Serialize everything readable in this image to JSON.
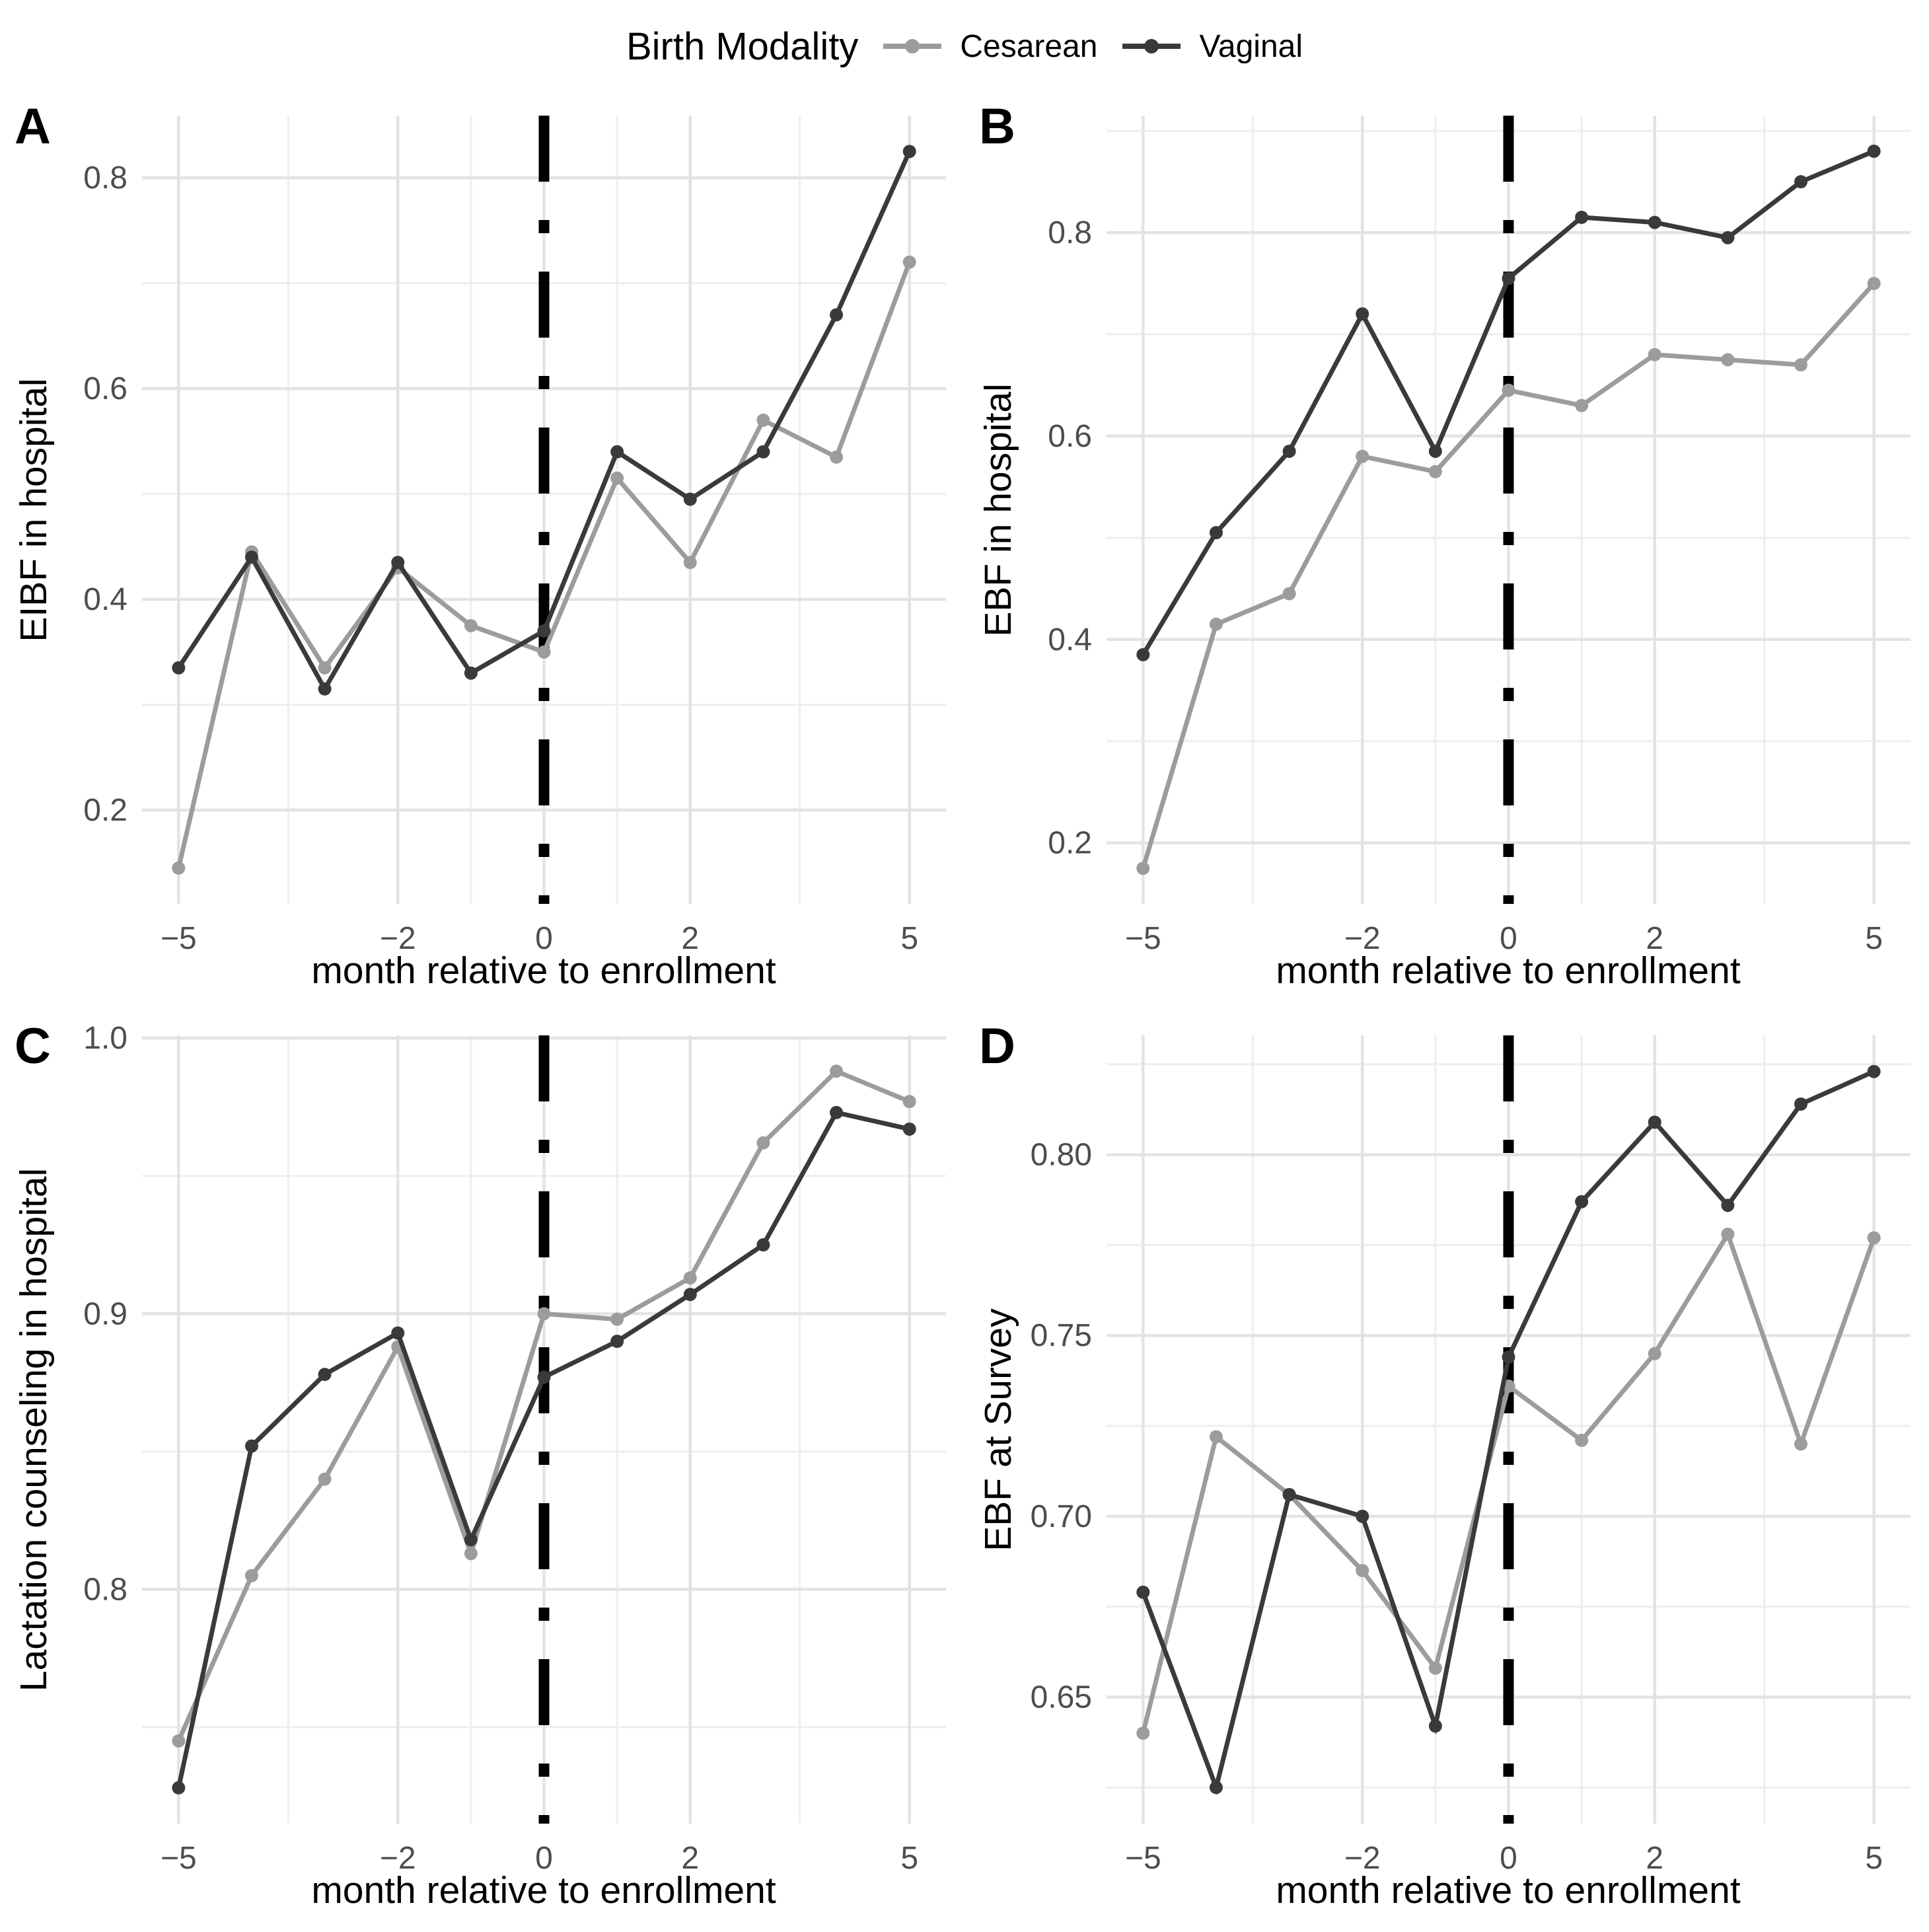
{
  "chart_data": {
    "type": "line",
    "xlabel": "month relative to enrollment",
    "x": [
      -5,
      -4,
      -3,
      -2,
      -1,
      0,
      1,
      2,
      3,
      4,
      5
    ],
    "xlim": [
      -5.5,
      5.5
    ],
    "x_breaks": [
      -5,
      -2,
      0,
      2,
      5
    ],
    "x_tick_labels": [
      "−5",
      "−2",
      "0",
      "2",
      "5"
    ],
    "x_minor_breaks": [
      -3.5,
      -1,
      1,
      3.5
    ],
    "grid": "on",
    "legend": {
      "title": "Birth Modality",
      "position": "top",
      "series": [
        {
          "name": "Cesarean",
          "color": "#9c9c9c"
        },
        {
          "name": "Vaginal",
          "color": "#3a3a3a"
        }
      ]
    },
    "vline": {
      "x": 0,
      "style": "dot-dash",
      "color": "#000000"
    },
    "panels": [
      {
        "label": "A",
        "ylabel": "EIBF in hospital",
        "ylim": [
          0.111,
          0.859
        ],
        "y_breaks": [
          0.2,
          0.4,
          0.6,
          0.8
        ],
        "y_tick_labels": [
          "0.2",
          "0.4",
          "0.6",
          "0.8"
        ],
        "y_minor_breaks": [
          0.3,
          0.5,
          0.7
        ],
        "series": [
          {
            "name": "Cesarean",
            "values": [
              0.145,
              0.445,
              0.335,
              0.43,
              0.375,
              0.35,
              0.515,
              0.435,
              0.57,
              0.535,
              0.72
            ]
          },
          {
            "name": "Vaginal",
            "values": [
              0.335,
              0.44,
              0.315,
              0.435,
              0.33,
              0.37,
              0.54,
              0.495,
              0.54,
              0.67,
              0.825
            ]
          }
        ]
      },
      {
        "label": "B",
        "ylabel": "EBF in hospital",
        "ylim": [
          0.14,
          0.915
        ],
        "y_breaks": [
          0.2,
          0.4,
          0.6,
          0.8
        ],
        "y_tick_labels": [
          "0.2",
          "0.4",
          "0.6",
          "0.8"
        ],
        "y_minor_breaks": [
          0.3,
          0.5,
          0.7,
          0.9
        ],
        "series": [
          {
            "name": "Cesarean",
            "values": [
              0.175,
              0.415,
              0.445,
              0.58,
              0.565,
              0.645,
              0.63,
              0.68,
              0.675,
              0.67,
              0.75
            ]
          },
          {
            "name": "Vaginal",
            "values": [
              0.385,
              0.505,
              0.585,
              0.72,
              0.585,
              0.755,
              0.815,
              0.81,
              0.795,
              0.85,
              0.88
            ]
          }
        ]
      },
      {
        "label": "C",
        "ylabel": "Lactation counseling in hospital",
        "ylim": [
          0.715,
          1.001
        ],
        "y_breaks": [
          0.8,
          0.9,
          1.0
        ],
        "y_tick_labels": [
          "0.8",
          "0.9",
          "1.0"
        ],
        "y_minor_breaks": [
          0.75,
          0.85,
          0.95
        ],
        "series": [
          {
            "name": "Cesarean",
            "values": [
              0.745,
              0.805,
              0.84,
              0.888,
              0.813,
              0.9,
              0.898,
              0.913,
              0.962,
              0.988,
              0.977
            ]
          },
          {
            "name": "Vaginal",
            "values": [
              0.728,
              0.852,
              0.878,
              0.893,
              0.818,
              0.877,
              0.89,
              0.907,
              0.925,
              0.973,
              0.967
            ]
          }
        ]
      },
      {
        "label": "D",
        "ylabel": "EBF at Survey",
        "ylim": [
          0.615,
          0.833
        ],
        "y_breaks": [
          0.65,
          0.7,
          0.75,
          0.8
        ],
        "y_tick_labels": [
          "0.65",
          "0.70",
          "0.75",
          "0.80"
        ],
        "y_minor_breaks": [
          0.625,
          0.675,
          0.725,
          0.775,
          0.825
        ],
        "series": [
          {
            "name": "Cesarean",
            "values": [
              0.64,
              0.722,
              0.706,
              0.685,
              0.658,
              0.736,
              0.721,
              0.745,
              0.778,
              0.72,
              0.777
            ]
          },
          {
            "name": "Vaginal",
            "values": [
              0.679,
              0.625,
              0.706,
              0.7,
              0.642,
              0.744,
              0.787,
              0.809,
              0.786,
              0.814,
              0.823
            ]
          }
        ]
      }
    ],
    "style": {
      "grid_major_color": "#e3e3e3",
      "grid_minor_color": "#eeeeee",
      "tick_label_color": "#4d4d4d",
      "text_color": "#000000",
      "vline_color": "#000000",
      "background": "#ffffff"
    }
  }
}
